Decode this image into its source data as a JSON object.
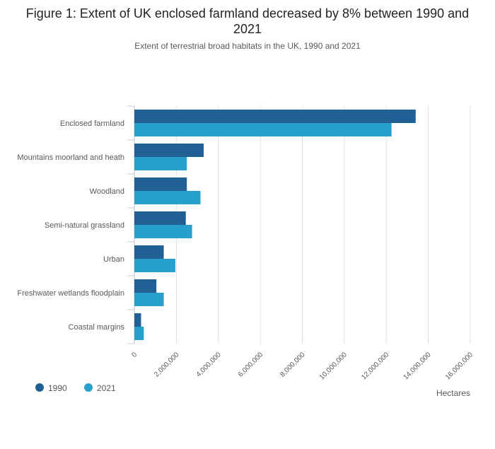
{
  "chart_data": {
    "type": "bar",
    "orientation": "horizontal",
    "title": "Figure 1: Extent of UK enclosed farmland decreased by 8% between 1990 and 2021",
    "subtitle": "Extent of terrestrial broad habitats in the UK, 1990 and 2021",
    "categories": [
      "Enclosed farmland",
      "Mountains moorland and heath",
      "Woodland",
      "Semi-natural grassland",
      "Urban",
      "Freshwater wetlands floodplain",
      "Coastal margins"
    ],
    "series": [
      {
        "name": "1990",
        "color": "#206095",
        "values": [
          13400000,
          3300000,
          2500000,
          2450000,
          1400000,
          1050000,
          320000
        ]
      },
      {
        "name": "2021",
        "color": "#27a0cc",
        "values": [
          12250000,
          2500000,
          3150000,
          2750000,
          1950000,
          1400000,
          450000
        ]
      }
    ],
    "xlabel": "Hectares",
    "xlim": [
      0,
      16000000
    ],
    "xticks": [
      0,
      2000000,
      4000000,
      6000000,
      8000000,
      10000000,
      12000000,
      14000000,
      16000000
    ],
    "xtick_labels": [
      "0",
      "2,000,000",
      "4,000,000",
      "6,000,000",
      "8,000,000",
      "10,000,000",
      "12,000,000",
      "14,000,000",
      "16,000,000"
    ],
    "grid": true,
    "legend": "bottom-left"
  }
}
